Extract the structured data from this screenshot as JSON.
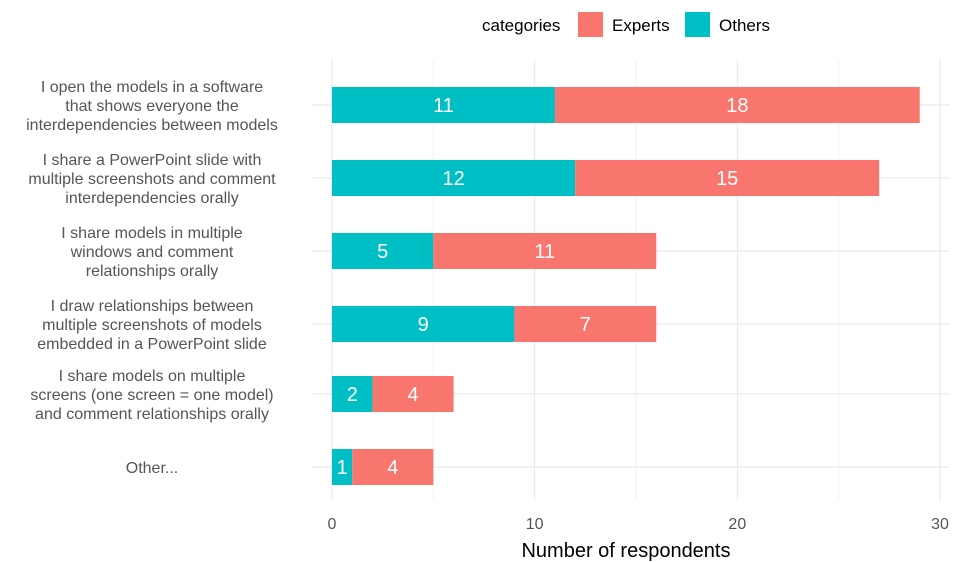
{
  "chart_data": {
    "type": "bar",
    "orientation": "horizontal",
    "stacked": true,
    "categories": [
      [
        "I open the models in a software",
        "that shows everyone the",
        "interdependencies between models"
      ],
      [
        "I share a PowerPoint slide with",
        "multiple screenshots and comment",
        "interdependencies orally"
      ],
      [
        "I share models in multiple",
        "windows and comment",
        "relationships orally"
      ],
      [
        "I draw relationships between",
        "multiple screenshots of models",
        "embedded in a PowerPoint slide"
      ],
      [
        "I share models on multiple",
        "screens (one screen = one model)",
        "and comment relationships orally"
      ],
      [
        "Other..."
      ]
    ],
    "series": [
      {
        "name": "Others",
        "color": "#00BFC4",
        "values": [
          11,
          12,
          5,
          9,
          2,
          1
        ]
      },
      {
        "name": "Experts",
        "color": "#F8766D",
        "values": [
          18,
          15,
          11,
          7,
          4,
          4
        ]
      }
    ],
    "legend": {
      "title": "categories",
      "position": "top",
      "order": [
        "Experts",
        "Others"
      ]
    },
    "xlabel": "Number of respondents",
    "ylabel": "",
    "xlim": [
      0,
      30
    ],
    "xticks": [
      0,
      10,
      20,
      30
    ],
    "grid": true
  }
}
